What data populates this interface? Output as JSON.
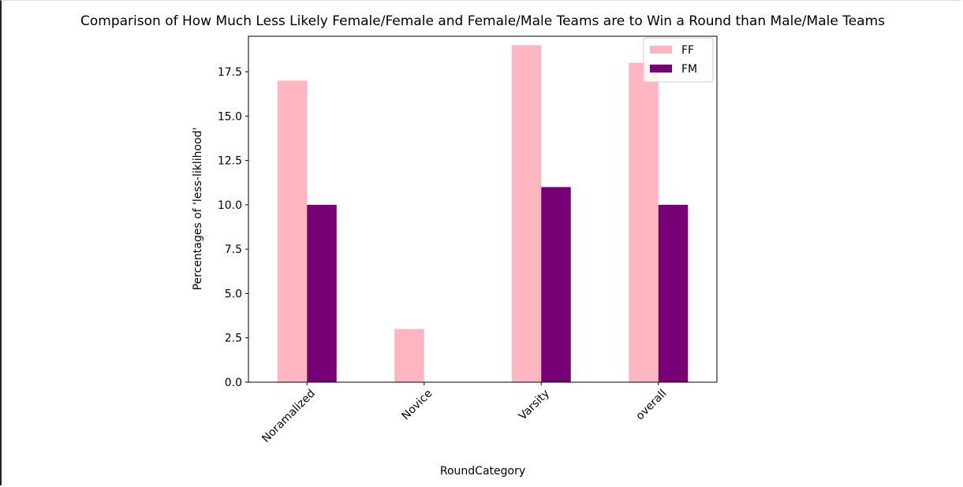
{
  "chart_data": {
    "type": "bar",
    "title": "Comparison of How Much Less Likely Female/Female and Female/Male Teams are to Win a Round than Male/Male Teams",
    "xlabel": "RoundCategory",
    "ylabel": "Percentages of 'less-liklihood'",
    "categories": [
      "Noramalized",
      "Novice",
      "Varsity",
      "overall"
    ],
    "series": [
      {
        "name": "FF",
        "color": "#ffb6c1",
        "values": [
          17,
          3,
          19,
          18
        ]
      },
      {
        "name": "FM",
        "color": "#770077",
        "values": [
          10,
          0,
          11,
          10
        ]
      }
    ],
    "ylim": [
      0,
      19.5
    ],
    "yticks": [
      "0.0",
      "2.5",
      "5.0",
      "7.5",
      "10.0",
      "12.5",
      "15.0",
      "17.5"
    ],
    "legend_position": "top-right",
    "grid": false
  }
}
